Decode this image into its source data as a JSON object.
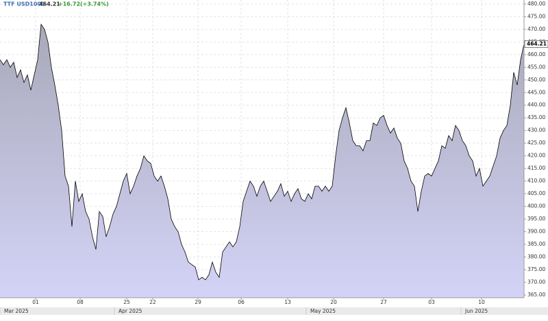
{
  "chart_data": {
    "type": "area",
    "title": "TTF USD1000",
    "last": 464.21,
    "change": "+16.72(+3.74%)",
    "color": "#000000",
    "fill_top": "#a9a9ba",
    "fill_bottom": "#d3d3f7",
    "values": [
      458,
      456,
      458,
      455,
      457,
      451,
      454,
      449,
      452,
      446,
      452,
      458,
      472,
      470,
      465,
      455,
      448,
      440,
      430,
      412,
      408,
      392,
      410,
      402,
      405,
      398,
      395,
      388,
      383,
      398,
      396,
      388,
      392,
      397,
      400,
      405,
      410,
      413,
      405,
      408,
      412,
      415,
      420,
      418,
      417,
      412,
      410,
      412,
      408,
      403,
      395,
      392,
      390,
      385,
      382,
      378,
      377,
      376,
      371,
      372,
      371,
      373,
      378,
      374,
      372,
      382,
      384,
      386,
      384,
      386,
      392,
      402,
      406,
      410,
      408,
      404,
      408,
      410,
      406,
      402,
      404,
      406,
      409,
      404,
      406,
      402,
      405,
      407,
      403,
      402,
      405,
      403,
      408,
      408,
      406,
      408,
      406,
      408,
      420,
      430,
      435,
      439,
      433,
      426,
      424,
      424,
      422,
      426,
      426,
      433,
      432,
      435,
      436,
      432,
      429,
      431,
      427,
      425,
      418,
      415,
      410,
      408,
      398,
      406,
      412,
      413,
      412,
      415,
      418,
      424,
      423,
      428,
      426,
      432,
      430,
      426,
      424,
      420,
      418,
      412,
      415,
      408,
      410,
      412,
      416,
      420,
      427,
      430,
      432,
      440,
      453,
      448,
      458,
      464.21
    ],
    "xlim": [
      0,
      153
    ],
    "ylim": [
      363.9,
      481.6
    ],
    "grid": true,
    "xticks": [
      {
        "value": 10.4,
        "label": "01"
      },
      {
        "value": 23.4,
        "label": "08"
      },
      {
        "value": 37,
        "label": "25"
      },
      {
        "value": 44.6,
        "label": "22"
      },
      {
        "value": 57.8,
        "label": "29"
      },
      {
        "value": 70.4,
        "label": "06"
      },
      {
        "value": 84,
        "label": "13"
      },
      {
        "value": 97.4,
        "label": "20"
      },
      {
        "value": 112,
        "label": "27"
      },
      {
        "value": 126,
        "label": "03"
      },
      {
        "value": 140.6,
        "label": "10"
      }
    ],
    "month_ticks": [
      {
        "value": 0,
        "label": "Mar 2025"
      },
      {
        "value": 33.4,
        "label": "Apr 2025"
      },
      {
        "value": 89.4,
        "label": "May 2025"
      },
      {
        "value": 134.6,
        "label": "Jun 2025"
      }
    ],
    "yticks": [
      {
        "value": 365,
        "label": "365.00"
      },
      {
        "value": 370,
        "label": "370.00"
      },
      {
        "value": 375,
        "label": "375.00"
      },
      {
        "value": 380,
        "label": "380.00"
      },
      {
        "value": 385,
        "label": "385.00"
      },
      {
        "value": 390,
        "label": "390.00"
      },
      {
        "value": 395,
        "label": "395.00"
      },
      {
        "value": 400,
        "label": "400.00"
      },
      {
        "value": 405,
        "label": "405.00"
      },
      {
        "value": 410,
        "label": "410.00"
      },
      {
        "value": 415,
        "label": "415.00"
      },
      {
        "value": 420,
        "label": "420.00"
      },
      {
        "value": 425,
        "label": "425.00"
      },
      {
        "value": 430,
        "label": "430.00"
      },
      {
        "value": 435,
        "label": "435.00"
      },
      {
        "value": 440,
        "label": "440.00"
      },
      {
        "value": 445,
        "label": "445.00"
      },
      {
        "value": 450,
        "label": "450.00"
      },
      {
        "value": 455,
        "label": "455.00"
      },
      {
        "value": 460,
        "label": "460.00"
      },
      {
        "value": 465,
        "label": "465.00"
      },
      {
        "value": 470,
        "label": "470.00"
      },
      {
        "value": 475,
        "label": "475.00"
      },
      {
        "value": 480,
        "label": "480.00"
      }
    ]
  }
}
